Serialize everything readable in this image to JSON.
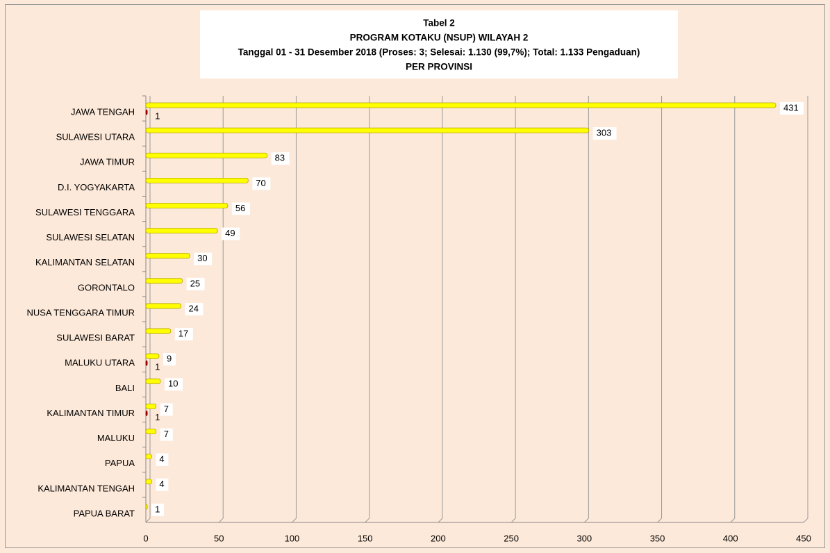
{
  "chart_data": {
    "type": "hbar",
    "title": [
      "Tabel 2",
      "PROGRAM KOTAKU (NSUP) WILAYAH 2",
      "Tanggal 01  - 31 Desember 2018 (Proses: 3; Selesai: 1.130 (99,7%); Total: 1.133  Pengaduan)",
      "PER PROVINSI"
    ],
    "categories": [
      "JAWA TENGAH",
      "SULAWESI UTARA",
      "JAWA TIMUR",
      "D.I. YOGYAKARTA",
      "SULAWESI TENGGARA",
      "SULAWESI SELATAN",
      "KALIMANTAN SELATAN",
      "GORONTALO",
      "NUSA TENGGARA TIMUR",
      "SULAWESI BARAT",
      "MALUKU UTARA",
      "BALI",
      "KALIMANTAN TIMUR",
      "MALUKU",
      "PAPUA",
      "KALIMANTAN TENGAH",
      "PAPUA BARAT"
    ],
    "series": [
      {
        "color": "#ffff00",
        "values": [
          431,
          303,
          83,
          70,
          56,
          49,
          30,
          25,
          24,
          17,
          9,
          10,
          7,
          7,
          4,
          4,
          1
        ]
      },
      {
        "color": "#c00000",
        "values": [
          1,
          null,
          null,
          null,
          null,
          null,
          null,
          null,
          null,
          null,
          1,
          null,
          1,
          null,
          null,
          null,
          null
        ]
      }
    ],
    "xlim": [
      0,
      450
    ],
    "xticks": [
      0,
      50,
      100,
      150,
      200,
      250,
      300,
      350,
      400,
      450
    ],
    "grid": true
  }
}
